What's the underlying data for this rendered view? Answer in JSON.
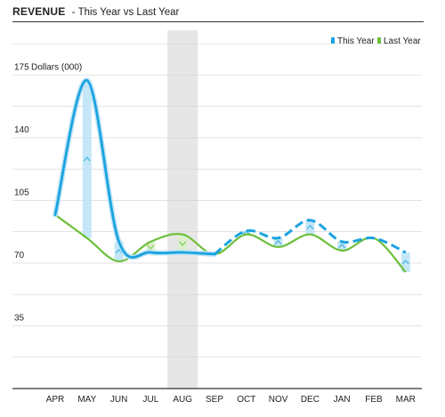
{
  "header": {
    "title": "REVENUE",
    "subtitle": "- This Year vs Last Year"
  },
  "colors": {
    "this_year": "#1aa3e0",
    "last_year": "#6cbf3a",
    "gap_fill": "#bfe4f6",
    "highlight": "#e6e6e6",
    "grid": "#d0d0d0"
  },
  "chart_data": {
    "type": "line",
    "ylabel": "Dollars (000)",
    "ylim": [
      0,
      200
    ],
    "yticks": [
      35,
      70,
      105,
      140,
      175
    ],
    "categories": [
      "APR",
      "MAY",
      "JUN",
      "JUL",
      "AUG",
      "SEP",
      "OCT",
      "NOV",
      "DEC",
      "JAN",
      "FEB",
      "MAR"
    ],
    "highlight_category": "AUG",
    "grid": true,
    "legend_position": "top-right",
    "series": [
      {
        "name": "This Year",
        "values": [
          97,
          172,
          82,
          76,
          76,
          75,
          88,
          84,
          94,
          82,
          84,
          76
        ]
      },
      {
        "name": "Last Year",
        "values": [
          97,
          84,
          71,
          82,
          86,
          75,
          86,
          79,
          86,
          77,
          84,
          65
        ]
      }
    ]
  }
}
